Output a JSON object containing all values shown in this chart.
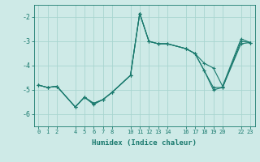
{
  "xlabel": "Humidex (Indice chaleur)",
  "ylabel": "",
  "background_color": "#ceeae7",
  "grid_color": "#a8d5d0",
  "line_color": "#1a7a6e",
  "xlim": [
    -0.5,
    23.5
  ],
  "ylim": [
    -6.5,
    -1.5
  ],
  "xticks": [
    0,
    1,
    2,
    4,
    5,
    6,
    7,
    8,
    10,
    11,
    12,
    13,
    14,
    16,
    17,
    18,
    19,
    20,
    22,
    23
  ],
  "yticks": [
    -6,
    -5,
    -4,
    -3,
    -2
  ],
  "series": [
    {
      "x": [
        0,
        1,
        2,
        4,
        5,
        6,
        7,
        8,
        10,
        11,
        12,
        13,
        14,
        16,
        17,
        18,
        19,
        20,
        22,
        23
      ],
      "y": [
        -4.8,
        -4.9,
        -4.85,
        -5.7,
        -5.3,
        -5.6,
        -5.4,
        -5.1,
        -4.4,
        -1.85,
        -3.0,
        -3.1,
        -3.1,
        -3.3,
        -3.5,
        -4.2,
        -4.9,
        -4.9,
        -3.0,
        -3.05
      ]
    },
    {
      "x": [
        0,
        1,
        2,
        4,
        5,
        6,
        7,
        8,
        10,
        11,
        12,
        13,
        14,
        16,
        17,
        18,
        19,
        20,
        22,
        23
      ],
      "y": [
        -4.8,
        -4.9,
        -4.85,
        -5.7,
        -5.3,
        -5.55,
        -5.4,
        -5.1,
        -4.4,
        -1.85,
        -3.0,
        -3.1,
        -3.1,
        -3.3,
        -3.5,
        -4.2,
        -5.0,
        -4.9,
        -3.1,
        -3.05
      ]
    },
    {
      "x": [
        0,
        1,
        2,
        4,
        5,
        6,
        7,
        8,
        10,
        11,
        12,
        13,
        14,
        16,
        17,
        18,
        19,
        20,
        22,
        23
      ],
      "y": [
        -4.8,
        -4.9,
        -4.85,
        -5.7,
        -5.3,
        -5.55,
        -5.4,
        -5.1,
        -4.4,
        -1.85,
        -3.0,
        -3.1,
        -3.1,
        -3.3,
        -3.5,
        -3.9,
        -4.1,
        -4.85,
        -2.9,
        -3.05
      ]
    }
  ]
}
